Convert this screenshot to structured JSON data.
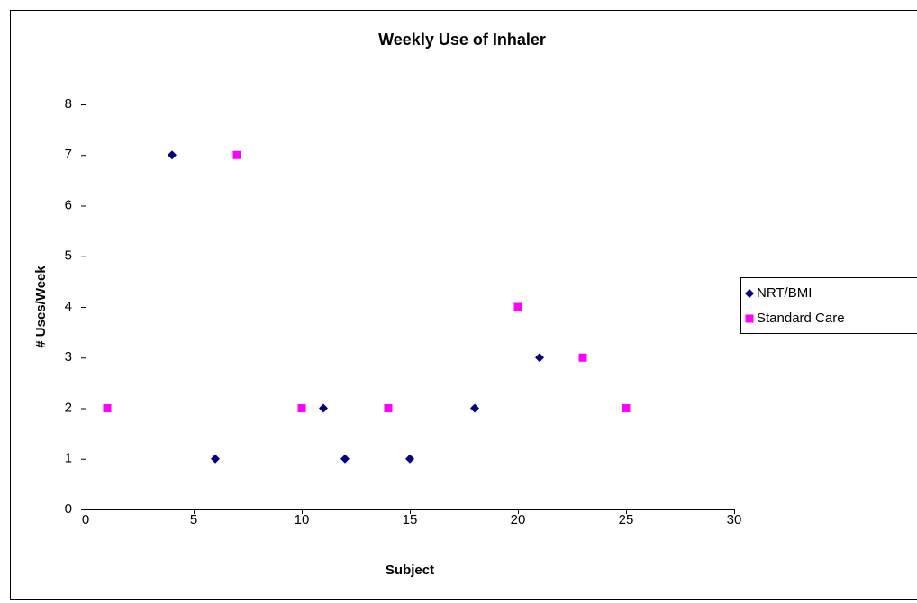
{
  "chart_data": {
    "type": "scatter",
    "title": "Weekly Use of Inhaler",
    "xlabel": "Subject",
    "ylabel": "# Uses/Week",
    "xlim": [
      0,
      30
    ],
    "xticks": [
      0,
      5,
      10,
      15,
      20,
      25,
      30
    ],
    "ylim": [
      0,
      8
    ],
    "yticks": [
      0,
      1,
      2,
      3,
      4,
      5,
      6,
      7,
      8
    ],
    "grid": false,
    "legend": "right",
    "series": [
      {
        "name": "NRT/BMI",
        "color": "#000080",
        "marker": "diamond",
        "x": [
          4,
          6,
          11,
          12,
          15,
          18,
          21
        ],
        "values": [
          7,
          1,
          2,
          1,
          1,
          2,
          3
        ]
      },
      {
        "name": "Standard Care",
        "color": "#ff00ff",
        "marker": "square",
        "x": [
          1,
          7,
          10,
          14,
          20,
          23,
          25
        ],
        "values": [
          2,
          7,
          2,
          2,
          4,
          3,
          2
        ]
      }
    ]
  }
}
